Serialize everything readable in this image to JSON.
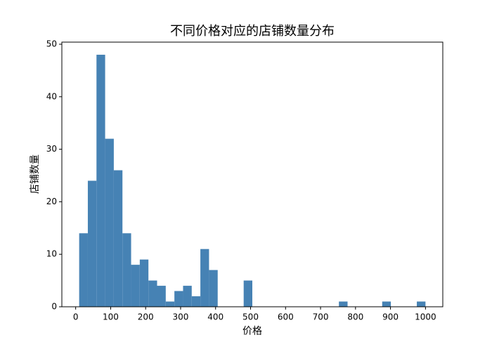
{
  "chart_data": {
    "type": "histogram",
    "title": "不同价格对应的店铺数量分布",
    "xlabel": "价格",
    "ylabel": "店铺数量",
    "bins": [
      10,
      34.75,
      59.5,
      84.25,
      109,
      133.75,
      158.5,
      183.25,
      208,
      232.75,
      257.5,
      282.25,
      307,
      331.75,
      356.5,
      381.25,
      406,
      430.75,
      455.5,
      480.25,
      505,
      529.75,
      554.5,
      579.25,
      604,
      628.75,
      653.5,
      678.25,
      703,
      727.75,
      752.5,
      777.25,
      802,
      826.75,
      851.5,
      876.25,
      901,
      925.75,
      950.5,
      975.25,
      1000
    ],
    "values": [
      14,
      24,
      48,
      32,
      26,
      14,
      8,
      9,
      5,
      4,
      1,
      3,
      4,
      2,
      11,
      7,
      0,
      0,
      0,
      5,
      0,
      0,
      0,
      0,
      0,
      0,
      0,
      0,
      0,
      0,
      1,
      0,
      0,
      0,
      0,
      1,
      0,
      0,
      0,
      1
    ],
    "color": "#4682b4",
    "xlim": [
      -39.5,
      1049.5
    ],
    "xticks": [
      0,
      100,
      200,
      300,
      400,
      500,
      600,
      700,
      800,
      900,
      1000
    ],
    "ylim": [
      0,
      50.4
    ],
    "yticks": [
      0,
      10,
      20,
      30,
      40,
      50
    ]
  }
}
